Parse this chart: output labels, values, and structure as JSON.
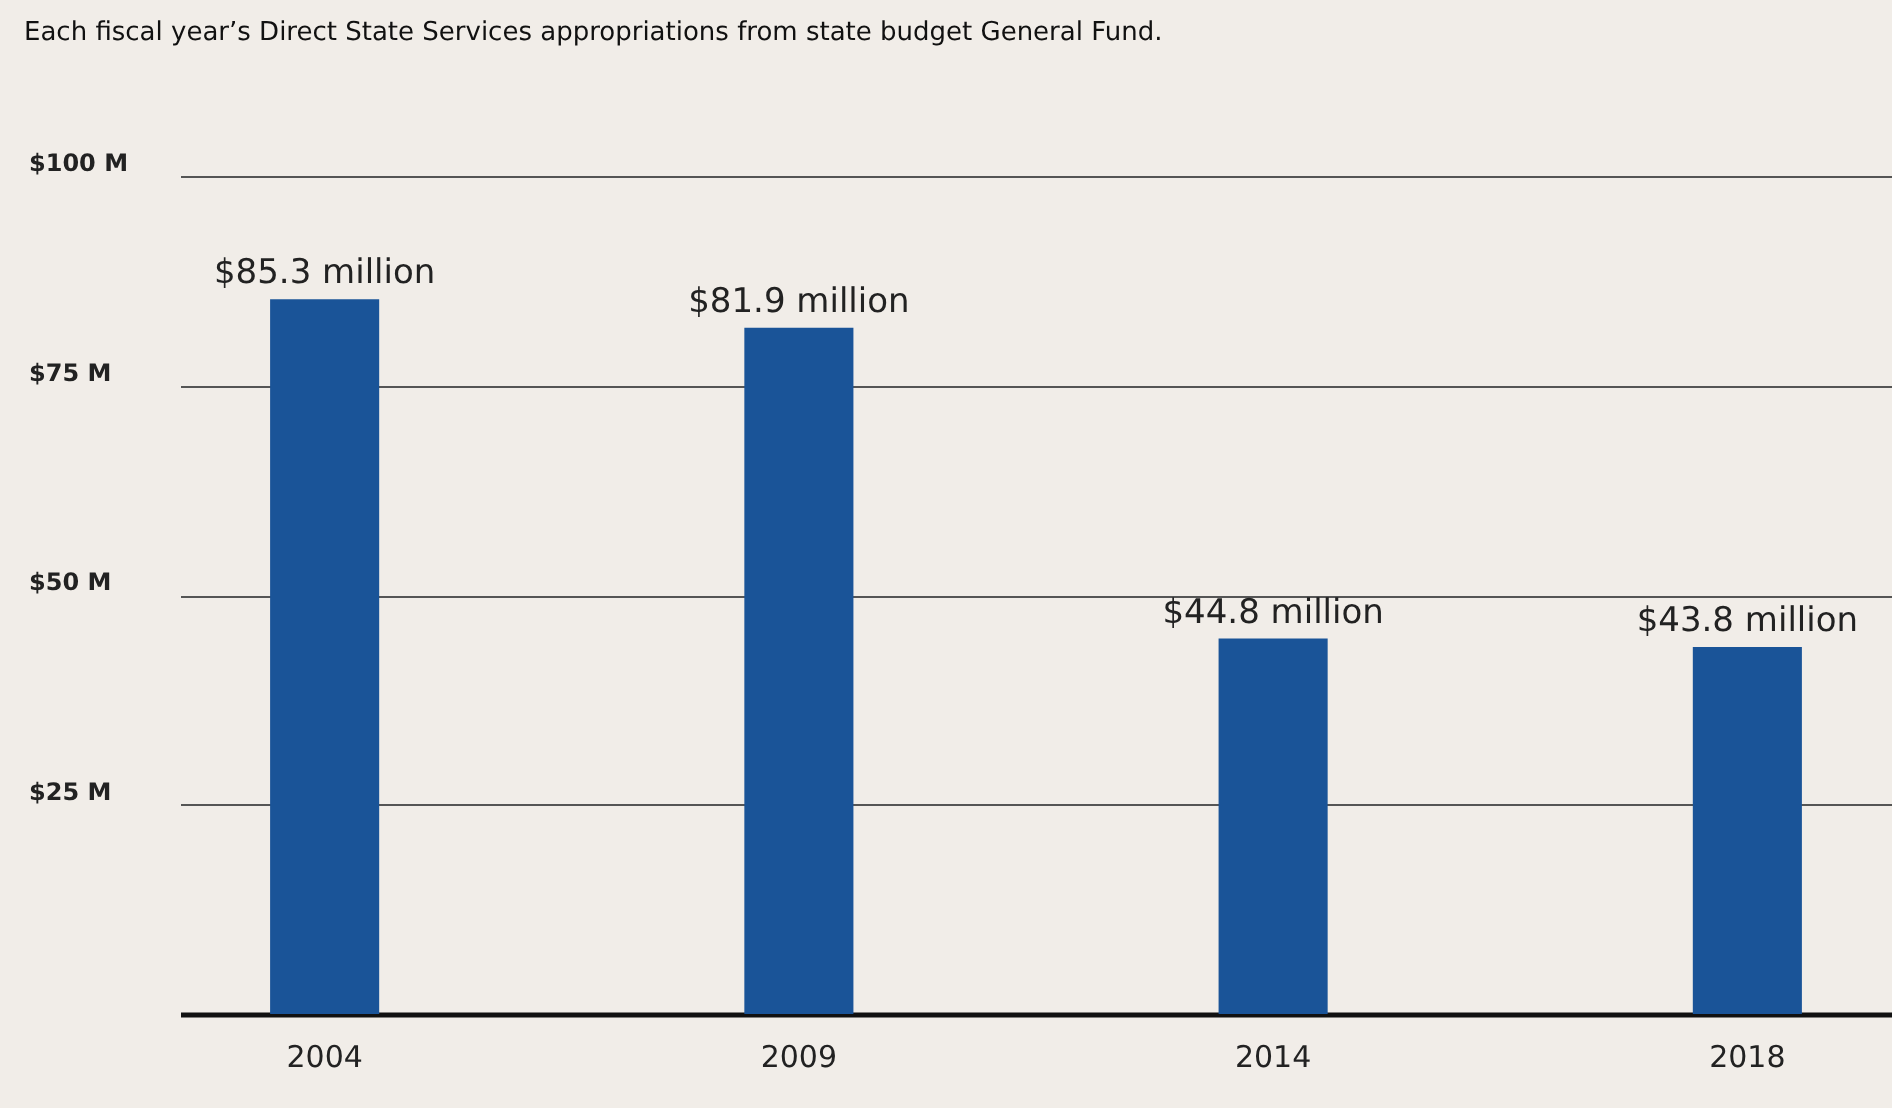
{
  "chart_data": {
    "type": "bar",
    "title": "Each fiscal year’s Direct State Services appropriations from state budget General Fund.",
    "categories": [
      "2004",
      "2009",
      "2014",
      "2018"
    ],
    "values": [
      85.3,
      81.9,
      44.8,
      43.8
    ],
    "value_labels": [
      "$85.3 million",
      "$81.9 million",
      "$44.8 million",
      "$43.8 million"
    ],
    "color": "#1a5498",
    "ylim": [
      0,
      100
    ],
    "yticks": [
      {
        "value": 0,
        "label": null
      },
      {
        "value": 25,
        "label": "$25 M"
      },
      {
        "value": 50,
        "label": "$50 M"
      },
      {
        "value": 75,
        "label": "$75 M"
      },
      {
        "value": 100,
        "label": "$100 M"
      }
    ],
    "grid": "y"
  }
}
